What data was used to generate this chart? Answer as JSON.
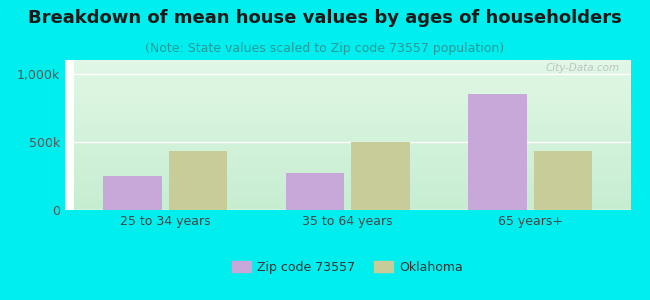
{
  "title": "Breakdown of mean house values by ages of householders",
  "subtitle": "(Note: State values scaled to Zip code 73557 population)",
  "categories": [
    "25 to 34 years",
    "35 to 64 years",
    "65 years+"
  ],
  "zipcode_values": [
    250000,
    270000,
    850000
  ],
  "oklahoma_values": [
    430000,
    500000,
    430000
  ],
  "ylim": [
    0,
    1100000
  ],
  "ytick_vals": [
    0,
    500000,
    1000000
  ],
  "ytick_labels": [
    "0",
    "500k",
    "1,000k"
  ],
  "bar_color_zip": "#c8a8d8",
  "bar_color_ok": "#c8cc98",
  "background_outer": "#00eeee",
  "bg_top_left": "#d0eedd",
  "bg_top_right": "#eaf5ee",
  "bg_bottom": "#c8e8d0",
  "legend_label_zip": "Zip code 73557",
  "legend_label_ok": "Oklahoma",
  "bar_width": 0.32,
  "title_fontsize": 13,
  "subtitle_fontsize": 9,
  "watermark": "City-Data.com"
}
